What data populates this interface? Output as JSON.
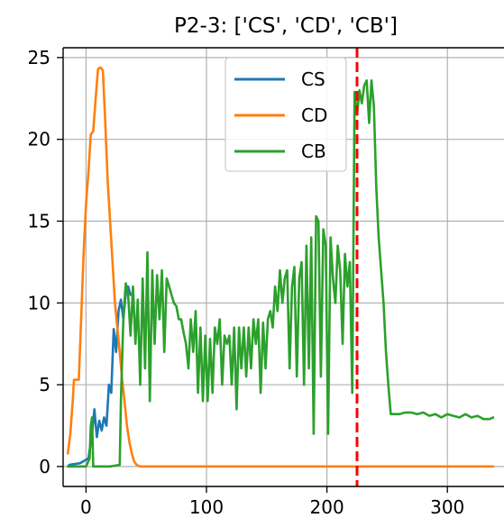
{
  "chart_data": {
    "type": "line",
    "title": "P2-3: ['CS', 'CD', 'CB']",
    "xlabel": "",
    "ylabel": "",
    "xlim": [
      -19,
      347
    ],
    "ylim": [
      -1.22,
      25.6
    ],
    "xticks": [
      0,
      100,
      200,
      300
    ],
    "yticks": [
      0,
      5,
      10,
      15,
      20,
      25
    ],
    "grid": true,
    "legend": {
      "placement": "top-center",
      "entries": [
        "CS",
        "CD",
        "CB"
      ]
    },
    "vline": {
      "x": 225,
      "color": "#ff0000",
      "style": "dashed"
    },
    "series": [
      {
        "name": "CS",
        "color": "#1f77b4",
        "x": [
          -14,
          -5,
          2,
          5,
          7,
          9,
          11,
          13,
          15,
          17,
          19,
          21,
          23,
          25,
          27,
          29,
          31,
          33,
          35,
          37
        ],
        "y": [
          0.1,
          0.2,
          0.5,
          2.0,
          3.5,
          1.8,
          2.8,
          2.2,
          3.0,
          2.5,
          5.0,
          4.5,
          8.4,
          7.0,
          9.5,
          10.2,
          9.0,
          10.6,
          11.0,
          10.5
        ]
      },
      {
        "name": "CD",
        "color": "#ff7f0e",
        "x": [
          -15,
          -13,
          -11,
          -10,
          -8,
          -6,
          -4,
          -2,
          0,
          2,
          4,
          6,
          8,
          10,
          12,
          14,
          16,
          18,
          20,
          22,
          24,
          26,
          28,
          30,
          32,
          34,
          36,
          38,
          40,
          42,
          45,
          60,
          100,
          200,
          300,
          338
        ],
        "y": [
          0.8,
          2.0,
          4.0,
          5.3,
          5.3,
          5.3,
          9.0,
          13.0,
          16.0,
          18.0,
          20.3,
          20.5,
          22.5,
          24.3,
          24.4,
          24.2,
          21.0,
          17.5,
          15.0,
          12.5,
          10.0,
          8.5,
          7.0,
          5.3,
          4.0,
          2.5,
          1.5,
          0.8,
          0.3,
          0.1,
          0.0,
          0.0,
          0.0,
          0.0,
          0.0,
          0.0
        ]
      },
      {
        "name": "CB",
        "color": "#2ca02c",
        "x": [
          -15,
          -5,
          0,
          3,
          4,
          5,
          6,
          10,
          20,
          28,
          29,
          31,
          33,
          35,
          37,
          39,
          41,
          43,
          45,
          47,
          49,
          51,
          53,
          55,
          57,
          59,
          61,
          63,
          65,
          67,
          69,
          71,
          73,
          75,
          77,
          79,
          81,
          83,
          85,
          87,
          89,
          91,
          93,
          95,
          97,
          99,
          101,
          103,
          105,
          107,
          109,
          111,
          113,
          115,
          117,
          119,
          121,
          123,
          125,
          127,
          129,
          131,
          133,
          135,
          137,
          139,
          141,
          143,
          145,
          147,
          149,
          151,
          153,
          155,
          157,
          159,
          161,
          163,
          165,
          167,
          169,
          171,
          173,
          175,
          177,
          179,
          181,
          183,
          185,
          187,
          189,
          191,
          193,
          195,
          197,
          199,
          201,
          203,
          205,
          207,
          209,
          211,
          213,
          215,
          217,
          219,
          221,
          223,
          225,
          227,
          229,
          231,
          233,
          235,
          237,
          239,
          241,
          243,
          245,
          247,
          249,
          251,
          253,
          255,
          260,
          265,
          270,
          275,
          280,
          285,
          290,
          295,
          300,
          305,
          310,
          315,
          320,
          325,
          330,
          335,
          338
        ],
        "y": [
          0.0,
          0.0,
          0.0,
          0.5,
          2.5,
          3.0,
          0.0,
          0.0,
          0.0,
          0.1,
          4.0,
          9.0,
          11.2,
          10.5,
          8.0,
          11.0,
          7.5,
          10.2,
          5.0,
          11.5,
          6.0,
          13.1,
          4.0,
          12.0,
          7.5,
          11.7,
          9.0,
          12.0,
          7.0,
          11.5,
          11.0,
          10.5,
          10.0,
          9.8,
          9.0,
          9.0,
          8.2,
          7.5,
          6.0,
          9.0,
          7.0,
          9.5,
          4.5,
          8.5,
          4.0,
          8.0,
          4.0,
          7.8,
          4.5,
          8.5,
          7.5,
          9.0,
          5.0,
          8.0,
          7.5,
          8.0,
          5.0,
          8.5,
          3.5,
          8.5,
          6.0,
          8.5,
          5.5,
          8.5,
          6.0,
          9.0,
          7.5,
          9.0,
          4.5,
          8.8,
          6.0,
          9.0,
          9.5,
          8.5,
          11.0,
          9.5,
          12.0,
          10.0,
          11.5,
          12.0,
          6.0,
          11.0,
          12.2,
          5.5,
          11.5,
          12.5,
          5.0,
          13.5,
          6.0,
          14.0,
          2.0,
          15.3,
          15.0,
          5.5,
          14.5,
          13.5,
          2.0,
          14.0,
          11.5,
          10.0,
          13.5,
          12.0,
          7.5,
          13.0,
          11.0,
          12.5,
          4.5,
          22.9,
          21.5,
          23.0,
          22.2,
          23.3,
          23.6,
          21.0,
          23.6,
          22.0,
          17.0,
          14.0,
          12.0,
          10.0,
          7.0,
          5.0,
          3.2,
          3.2,
          3.2,
          3.3,
          3.3,
          3.2,
          3.3,
          3.1,
          3.2,
          3.0,
          3.2,
          3.1,
          3.0,
          3.2,
          3.0,
          3.1,
          2.9,
          2.9,
          3.0
        ]
      }
    ]
  }
}
